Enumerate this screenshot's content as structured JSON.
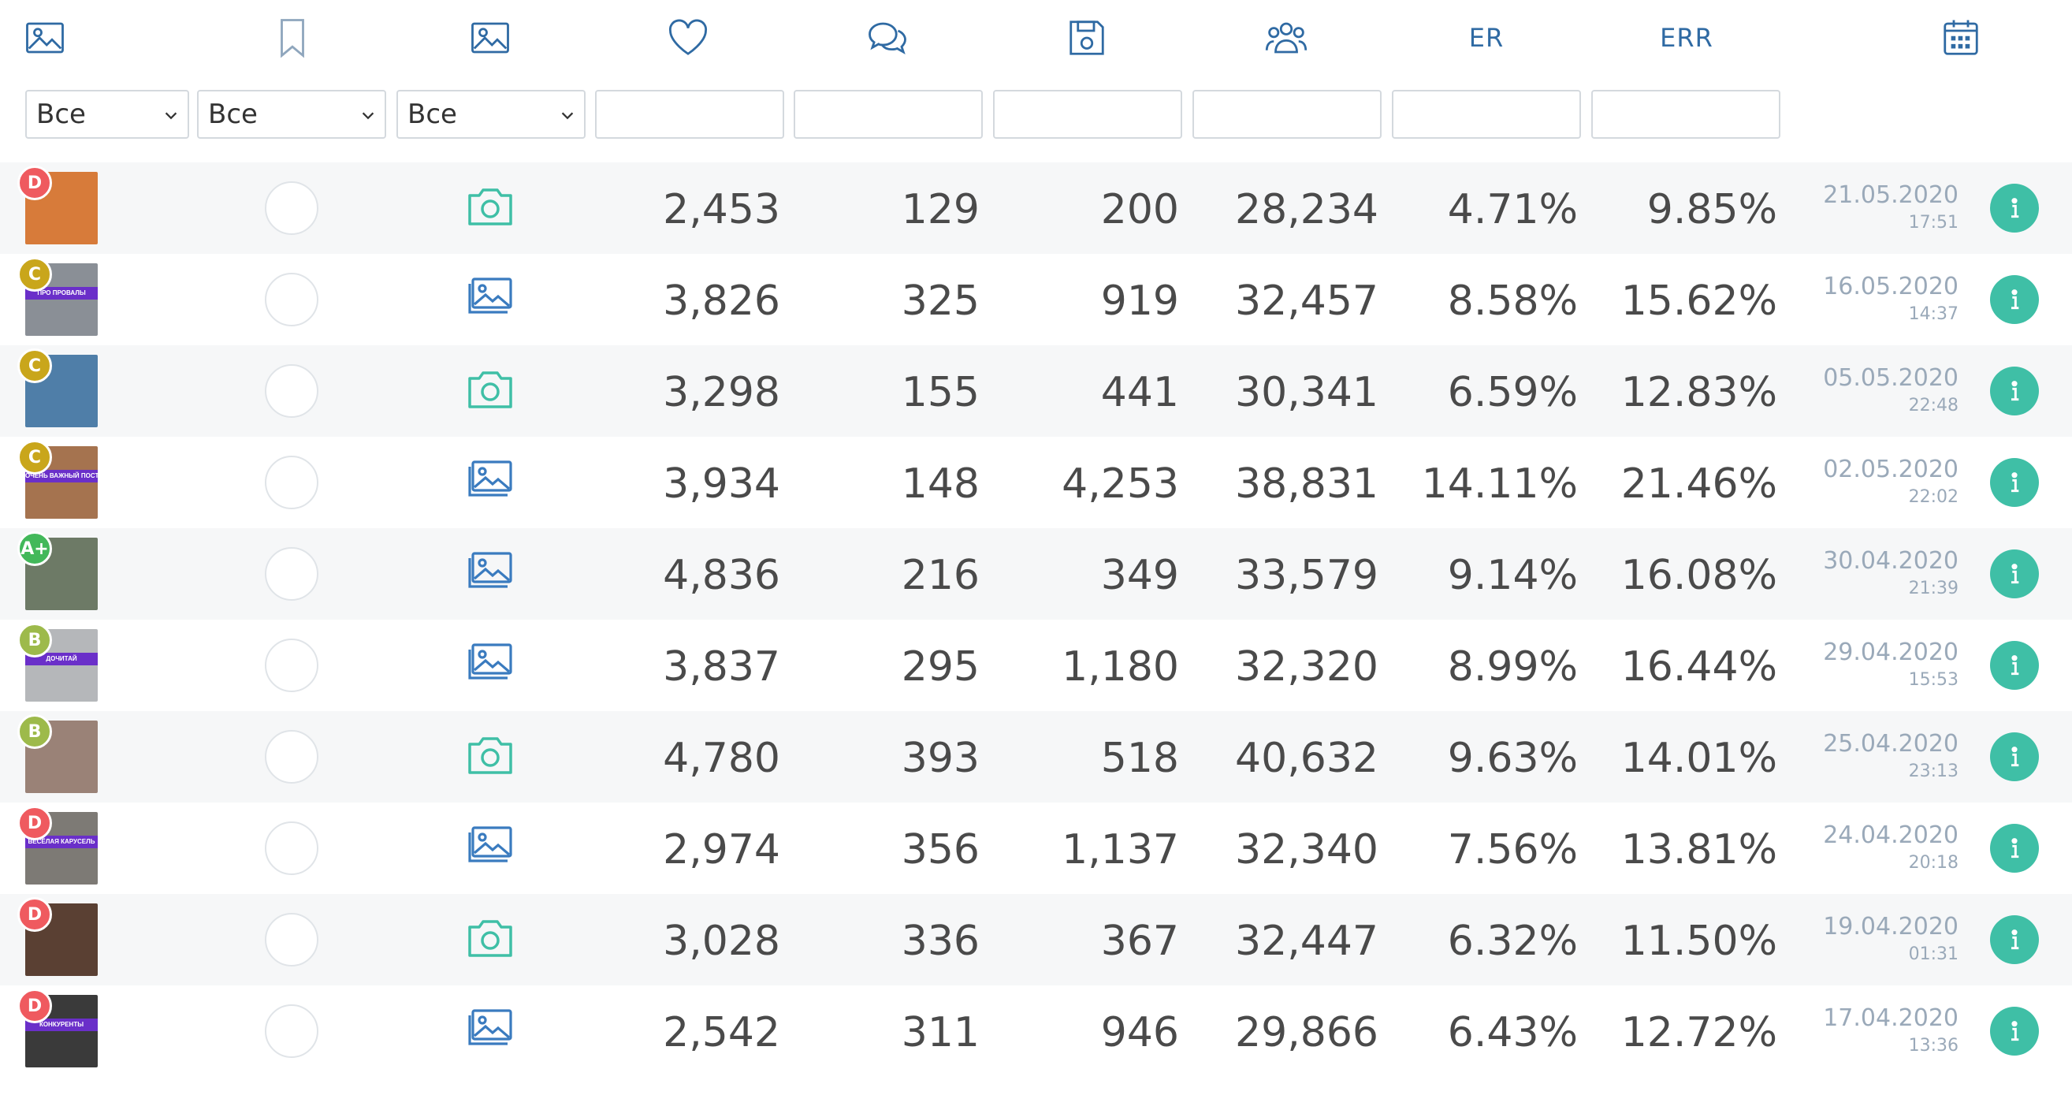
{
  "header": {
    "er_label": "ER",
    "err_label": "ERR",
    "icons": [
      "image-icon",
      "bookmark-icon",
      "image-icon",
      "heart-icon",
      "comments-icon",
      "save-icon",
      "users-icon",
      "calendar-icon"
    ]
  },
  "filters": {
    "select1": "Все",
    "select2": "Все",
    "select3": "Все",
    "inputs": [
      "",
      "",
      "",
      "",
      "",
      ""
    ]
  },
  "colors": {
    "teal": "#3fbfa6",
    "blue": "#2f6aa3",
    "grade_D": "#ef5a5f",
    "grade_C": "#c9a61b",
    "grade_Aplus": "#42b85a",
    "grade_B": "#9dba4b",
    "thumb_bar": "#6a2fc9"
  },
  "rows": [
    {
      "grade": "D",
      "gradeColor": "#ef5a5f",
      "thumbBar": "",
      "thumbColor": "#d77b3a",
      "type": "photo",
      "likes": "2,453",
      "comments": "129",
      "saves": "200",
      "reach": "28,234",
      "er": "4.71%",
      "err": "9.85%",
      "date": "21.05.2020",
      "time": "17:51"
    },
    {
      "grade": "C",
      "gradeColor": "#c9a61b",
      "thumbBar": "ПРО ПРОВАЛЫ",
      "thumbColor": "#8a8f96",
      "type": "carousel",
      "likes": "3,826",
      "comments": "325",
      "saves": "919",
      "reach": "32,457",
      "er": "8.58%",
      "err": "15.62%",
      "date": "16.05.2020",
      "time": "14:37"
    },
    {
      "grade": "C",
      "gradeColor": "#c9a61b",
      "thumbBar": "",
      "thumbColor": "#4f7ea8",
      "type": "photo",
      "likes": "3,298",
      "comments": "155",
      "saves": "441",
      "reach": "30,341",
      "er": "6.59%",
      "err": "12.83%",
      "date": "05.05.2020",
      "time": "22:48"
    },
    {
      "grade": "C",
      "gradeColor": "#c9a61b",
      "thumbBar": "ОЧЕНЬ ВАЖНЫЙ ПОСТ",
      "thumbColor": "#a5734f",
      "type": "carousel",
      "likes": "3,934",
      "comments": "148",
      "saves": "4,253",
      "reach": "38,831",
      "er": "14.11%",
      "err": "21.46%",
      "date": "02.05.2020",
      "time": "22:02"
    },
    {
      "grade": "A+",
      "gradeColor": "#42b85a",
      "thumbBar": "",
      "thumbColor": "#6d7a66",
      "type": "carousel",
      "likes": "4,836",
      "comments": "216",
      "saves": "349",
      "reach": "33,579",
      "er": "9.14%",
      "err": "16.08%",
      "date": "30.04.2020",
      "time": "21:39"
    },
    {
      "grade": "B",
      "gradeColor": "#9dba4b",
      "thumbBar": "ДОЧИТАЙ",
      "thumbColor": "#b5b7ba",
      "type": "carousel",
      "likes": "3,837",
      "comments": "295",
      "saves": "1,180",
      "reach": "32,320",
      "er": "8.99%",
      "err": "16.44%",
      "date": "29.04.2020",
      "time": "15:53"
    },
    {
      "grade": "B",
      "gradeColor": "#9dba4b",
      "thumbBar": "",
      "thumbColor": "#9a8277",
      "type": "photo",
      "likes": "4,780",
      "comments": "393",
      "saves": "518",
      "reach": "40,632",
      "er": "9.63%",
      "err": "14.01%",
      "date": "25.04.2020",
      "time": "23:13"
    },
    {
      "grade": "D",
      "gradeColor": "#ef5a5f",
      "thumbBar": "ВЕСЁЛАЯ КАРУСЕЛЬ",
      "thumbColor": "#7d7a75",
      "type": "carousel",
      "likes": "2,974",
      "comments": "356",
      "saves": "1,137",
      "reach": "32,340",
      "er": "7.56%",
      "err": "13.81%",
      "date": "24.04.2020",
      "time": "20:18"
    },
    {
      "grade": "D",
      "gradeColor": "#ef5a5f",
      "thumbBar": "",
      "thumbColor": "#5a4033",
      "type": "photo",
      "likes": "3,028",
      "comments": "336",
      "saves": "367",
      "reach": "32,447",
      "er": "6.32%",
      "err": "11.50%",
      "date": "19.04.2020",
      "time": "01:31"
    },
    {
      "grade": "D",
      "gradeColor": "#ef5a5f",
      "thumbBar": "КОНКУРЕНТЫ",
      "thumbColor": "#3a3a3a",
      "type": "carousel",
      "likes": "2,542",
      "comments": "311",
      "saves": "946",
      "reach": "29,866",
      "er": "6.43%",
      "err": "12.72%",
      "date": "17.04.2020",
      "time": "13:36"
    }
  ]
}
